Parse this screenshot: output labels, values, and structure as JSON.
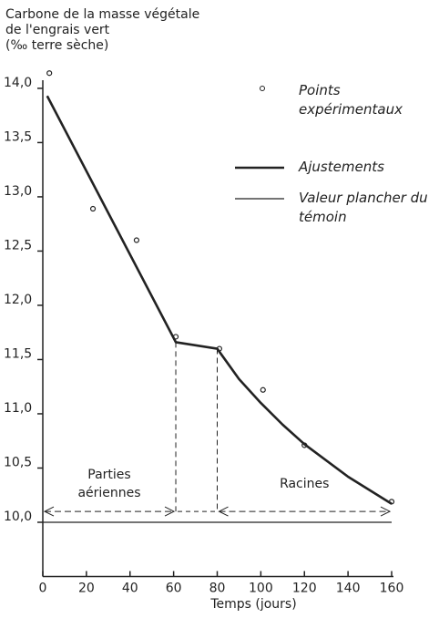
{
  "chart_data": {
    "type": "line",
    "title": [
      "Carbone de la masse végétale",
      "de l'engrais vert",
      "(‰ terre sèche)"
    ],
    "x_label": "Temps (jours)",
    "xlim": [
      0,
      160
    ],
    "xticks": [
      0,
      20,
      40,
      60,
      80,
      100,
      120,
      140,
      160
    ],
    "ylim": [
      9.5,
      14.1
    ],
    "yticks": [
      {
        "value": 10,
        "label": "10,0"
      },
      {
        "value": 10.5,
        "label": "10,5"
      },
      {
        "value": 11,
        "label": "11,0"
      },
      {
        "value": 11.5,
        "label": "11,5"
      },
      {
        "value": 12,
        "label": "12,0"
      },
      {
        "value": 12.5,
        "label": "12,5"
      },
      {
        "value": 13,
        "label": "13,0"
      },
      {
        "value": 13.5,
        "label": "13,5"
      },
      {
        "value": 14,
        "label": "14,0"
      }
    ],
    "grid": false,
    "series": [
      {
        "name": "Points expérimentaux",
        "style": "markers",
        "color": "#222222",
        "x": [
          3,
          23,
          43,
          61,
          81,
          101,
          120,
          160
        ],
        "values": [
          14.14,
          12.89,
          12.6,
          11.71,
          11.6,
          11.22,
          10.71,
          10.19
        ]
      },
      {
        "name": "Ajustements",
        "style": "thick",
        "color": "#222222",
        "x": [
          2,
          61,
          80,
          90,
          100,
          110,
          120,
          140,
          160
        ],
        "values": [
          13.93,
          11.66,
          11.6,
          11.32,
          11.1,
          10.9,
          10.72,
          10.42,
          10.17
        ]
      },
      {
        "name": "Valeur plancher du témoin",
        "style": "thin",
        "color": "#222222",
        "x": [
          0,
          160
        ],
        "values": [
          10,
          10
        ]
      }
    ],
    "regions": [
      {
        "label": "Parties aériennes",
        "from": 0,
        "to": 61,
        "top": 11.66
      },
      {
        "label": "Racines",
        "from": 80,
        "to": 160,
        "top": 11.6
      }
    ],
    "arrow_level": 10.1
  }
}
